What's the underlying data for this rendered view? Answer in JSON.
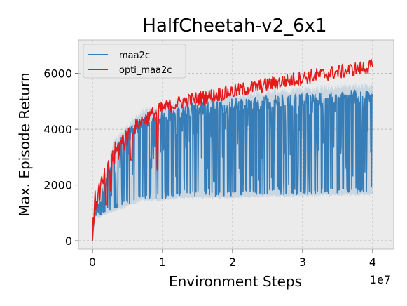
{
  "chart_data": {
    "type": "line",
    "title": "HalfCheetah-v2_6x1",
    "xlabel": "Environment Steps",
    "ylabel": "Max. Episode Return",
    "x_offset_label": "1e7",
    "xlim": [
      -0.2,
      4.3
    ],
    "ylim": [
      -300,
      7200
    ],
    "x_ticks": [
      0,
      1,
      2,
      3,
      4
    ],
    "x_tick_labels": [
      "0",
      "1",
      "2",
      "3",
      "4"
    ],
    "y_ticks": [
      0,
      2000,
      4000,
      6000
    ],
    "y_tick_labels": [
      "0",
      "2000",
      "4000",
      "6000"
    ],
    "grid": true,
    "legend_position": "top-left",
    "background_color": "#ebebeb",
    "series": [
      {
        "name": "maa2c",
        "color": "#377eb8",
        "kind": "oscillating",
        "x_start": 0.0,
        "x_end": 4.0,
        "upper_envelope_x": [
          0.0,
          0.03,
          0.1,
          0.2,
          0.3,
          0.5,
          0.7,
          1.0,
          1.3,
          1.6,
          2.0,
          2.5,
          3.0,
          3.5,
          4.0
        ],
        "upper_envelope_y": [
          0,
          1200,
          1600,
          2300,
          3400,
          4000,
          4500,
          4700,
          4900,
          5000,
          5100,
          5200,
          5300,
          5400,
          5450
        ],
        "lower_envelope_x": [
          0.0,
          0.03,
          0.1,
          0.3,
          0.5,
          0.7,
          1.0,
          1.3,
          1.6,
          2.0,
          2.5,
          3.0,
          3.5,
          4.0
        ],
        "lower_envelope_y": [
          0,
          900,
          900,
          1100,
          1300,
          1500,
          1500,
          1600,
          1600,
          1600,
          1650,
          1650,
          1700,
          1700
        ]
      },
      {
        "name": "opti_maa2c",
        "color": "#e41a1c",
        "kind": "noisy",
        "x_start": 0.0,
        "x_end": 4.0,
        "trend_x": [
          0.0,
          0.03,
          0.1,
          0.2,
          0.3,
          0.5,
          0.7,
          1.0,
          1.3,
          1.6,
          2.0,
          2.5,
          3.0,
          3.5,
          4.0
        ],
        "trend_y": [
          0,
          1300,
          1800,
          2300,
          3000,
          3800,
          4300,
          4750,
          5000,
          5150,
          5350,
          5600,
          5850,
          6050,
          6250
        ],
        "dips": [
          {
            "x": 0.2,
            "y": 1300
          },
          {
            "x": 0.26,
            "y": 1800
          },
          {
            "x": 0.93,
            "y": 2550
          },
          {
            "x": 0.55,
            "y": 2900
          }
        ]
      }
    ]
  }
}
